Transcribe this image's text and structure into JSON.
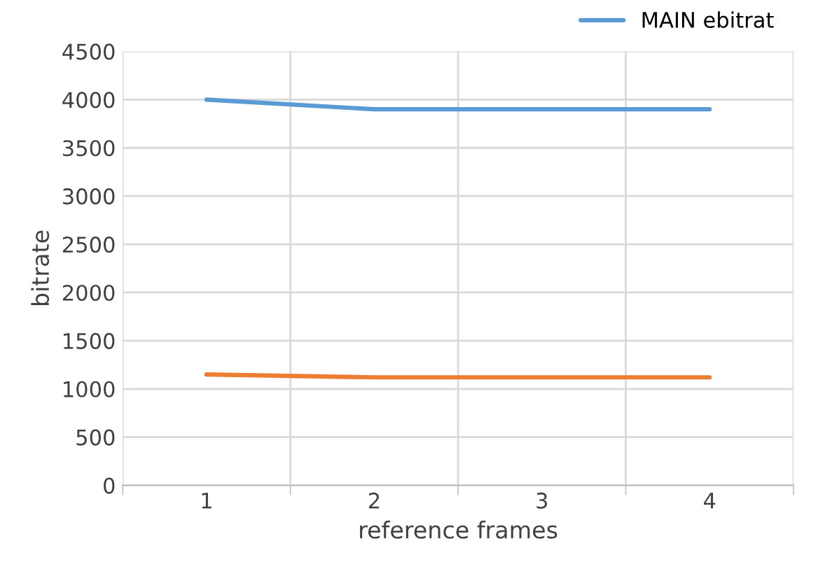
{
  "chart_data": {
    "type": "line",
    "xlabel": "reference frames",
    "ylabel": "bitrate",
    "categories": [
      "1",
      "2",
      "3",
      "4"
    ],
    "series": [
      {
        "name": "MAIN ebitrat",
        "color": "#5b9bd5",
        "values": [
          4000,
          3900,
          3900,
          3900
        ]
      },
      {
        "color": "#ed7d31",
        "values": [
          1150,
          1120,
          1120,
          1120
        ]
      }
    ],
    "ylim": [
      0,
      4500
    ],
    "yticks": [
      0,
      500,
      1000,
      1500,
      2000,
      2500,
      3000,
      3500,
      4000,
      4500
    ],
    "grid": true,
    "legend": "top right"
  }
}
